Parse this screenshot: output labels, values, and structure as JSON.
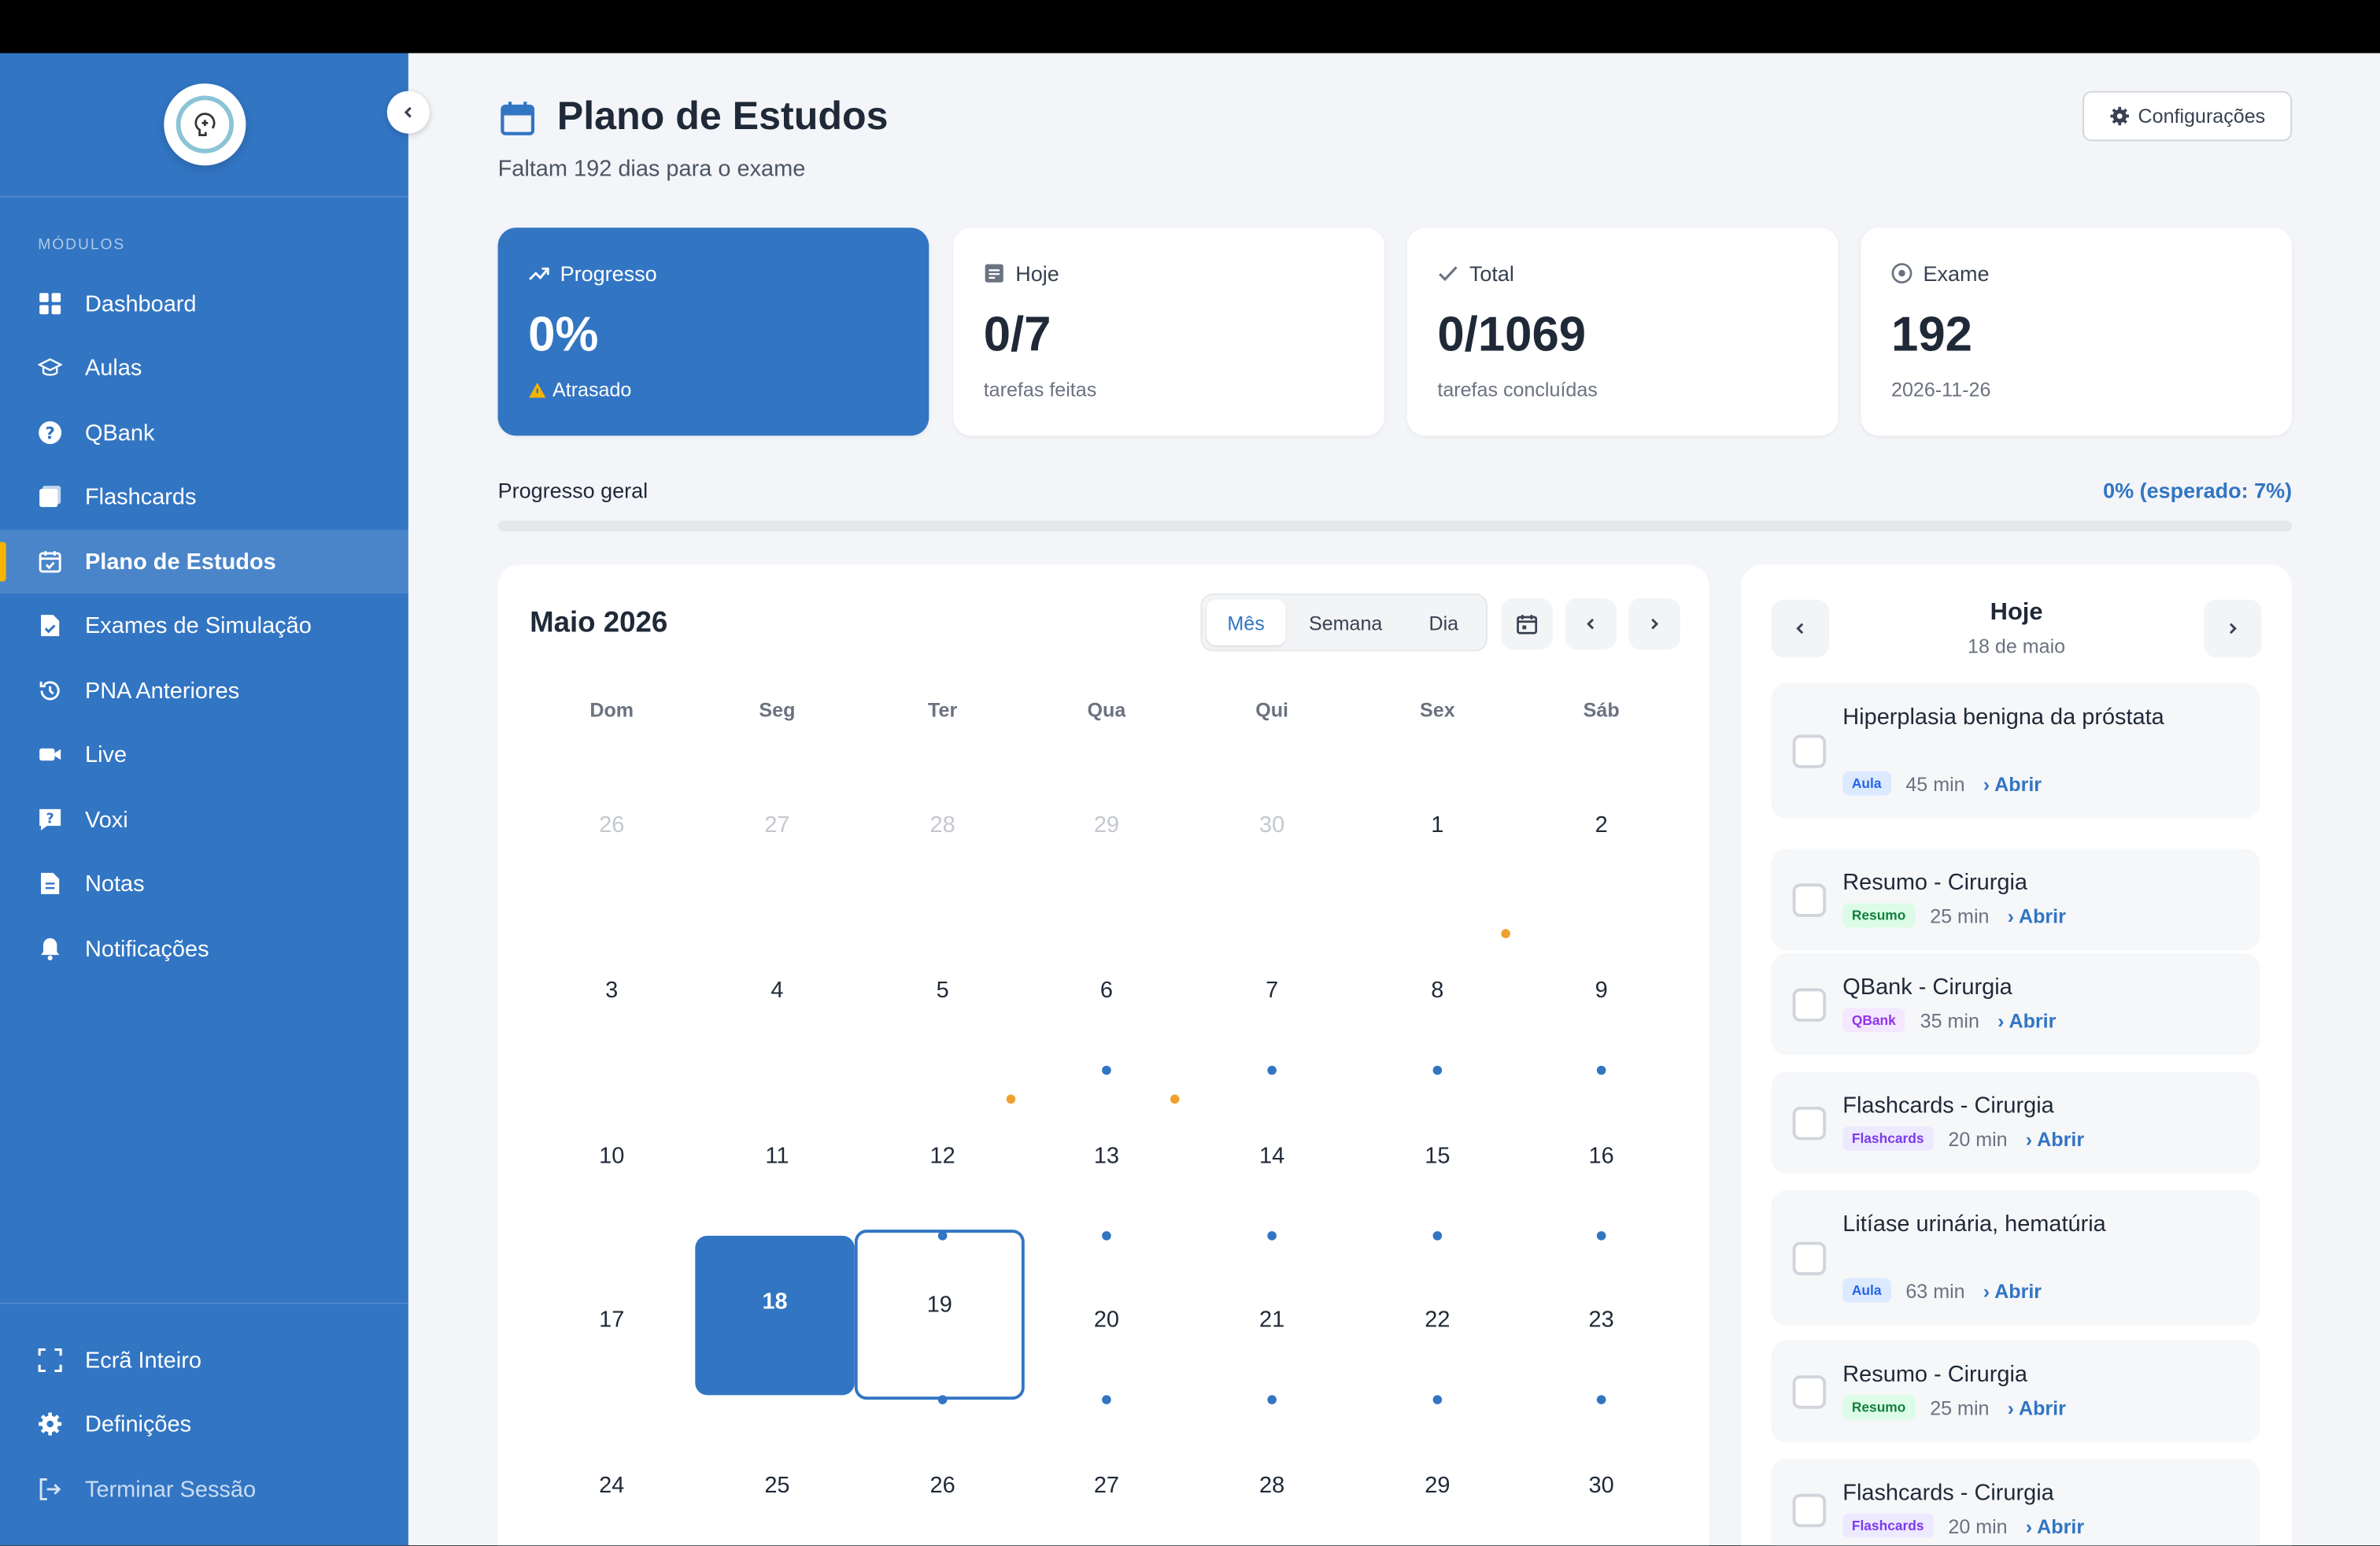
{
  "sidebar": {
    "section_label": "MÓDULOS",
    "items": [
      {
        "label": "Dashboard",
        "icon": "grid-icon"
      },
      {
        "label": "Aulas",
        "icon": "graduation-cap-icon"
      },
      {
        "label": "QBank",
        "icon": "question-circle-icon"
      },
      {
        "label": "Flashcards",
        "icon": "cards-icon"
      },
      {
        "label": "Plano de Estudos",
        "icon": "calendar-check-icon",
        "active": true
      },
      {
        "label": "Exames de Simulação",
        "icon": "file-check-icon"
      },
      {
        "label": "PNA Anteriores",
        "icon": "history-icon"
      },
      {
        "label": "Live",
        "icon": "video-icon"
      },
      {
        "label": "Voxi",
        "icon": "chat-question-icon"
      },
      {
        "label": "Notas",
        "icon": "note-icon"
      },
      {
        "label": "Notificações",
        "icon": "bell-icon"
      }
    ],
    "bottom": [
      {
        "label": "Ecrã Inteiro",
        "icon": "fullscreen-icon"
      },
      {
        "label": "Definições",
        "icon": "gear-icon"
      },
      {
        "label": "Terminar Sessão",
        "icon": "logout-icon"
      }
    ]
  },
  "header": {
    "title": "Plano de Estudos",
    "subtitle": "Faltam 192 dias para o exame",
    "config_label": "Configurações"
  },
  "stats": {
    "progress": {
      "label": "Progresso",
      "value": "0%",
      "sub": "Atrasado"
    },
    "today": {
      "label": "Hoje",
      "value": "0/7",
      "sub": "tarefas feitas"
    },
    "total": {
      "label": "Total",
      "value": "0/1069",
      "sub": "tarefas concluídas"
    },
    "exam": {
      "label": "Exame",
      "value": "192",
      "sub": "2026-11-26"
    }
  },
  "overall": {
    "label": "Progresso geral",
    "value_text": "0% (esperado: 7%)",
    "fraction": 0
  },
  "calendar": {
    "title": "Maio 2026",
    "views": [
      "Mês",
      "Semana",
      "Dia"
    ],
    "active_view": "Mês",
    "weekdays": [
      "Dom",
      "Seg",
      "Ter",
      "Qua",
      "Qui",
      "Sex",
      "Sáb"
    ],
    "weeks": [
      [
        "26",
        "27",
        "28",
        "29",
        "30",
        "1",
        "2"
      ],
      [
        "3",
        "4",
        "5",
        "6",
        "7",
        "8",
        "9"
      ],
      [
        "10",
        "11",
        "12",
        "13",
        "14",
        "15",
        "16"
      ],
      [
        "17",
        "18",
        "19",
        "20",
        "21",
        "22",
        "23"
      ],
      [
        "24",
        "25",
        "26",
        "27",
        "28",
        "29",
        "30"
      ]
    ],
    "today_day": "18",
    "selected_day": "19"
  },
  "today_panel": {
    "title": "Hoje",
    "date": "18 de maio",
    "open_label": "› Abrir",
    "tasks": [
      {
        "name": "Hiperplasia benigna da próstata",
        "type": "Aula",
        "duration": "45 min"
      },
      {
        "name": "Resumo - Cirurgia",
        "type": "Resumo",
        "duration": "25 min"
      },
      {
        "name": "QBank - Cirurgia",
        "type": "QBank",
        "duration": "35 min"
      },
      {
        "name": "Flashcards - Cirurgia",
        "type": "Flashcards",
        "duration": "20 min"
      },
      {
        "name": "Litíase urinária, hematúria",
        "type": "Aula",
        "duration": "63 min"
      },
      {
        "name": "Resumo - Cirurgia",
        "type": "Resumo",
        "duration": "25 min"
      },
      {
        "name": "Flashcards - Cirurgia",
        "type": "Flashcards",
        "duration": "20 min"
      }
    ]
  },
  "colors": {
    "primary": "#3275c3",
    "accent": "#f5b400",
    "warning": "#f0a030"
  }
}
